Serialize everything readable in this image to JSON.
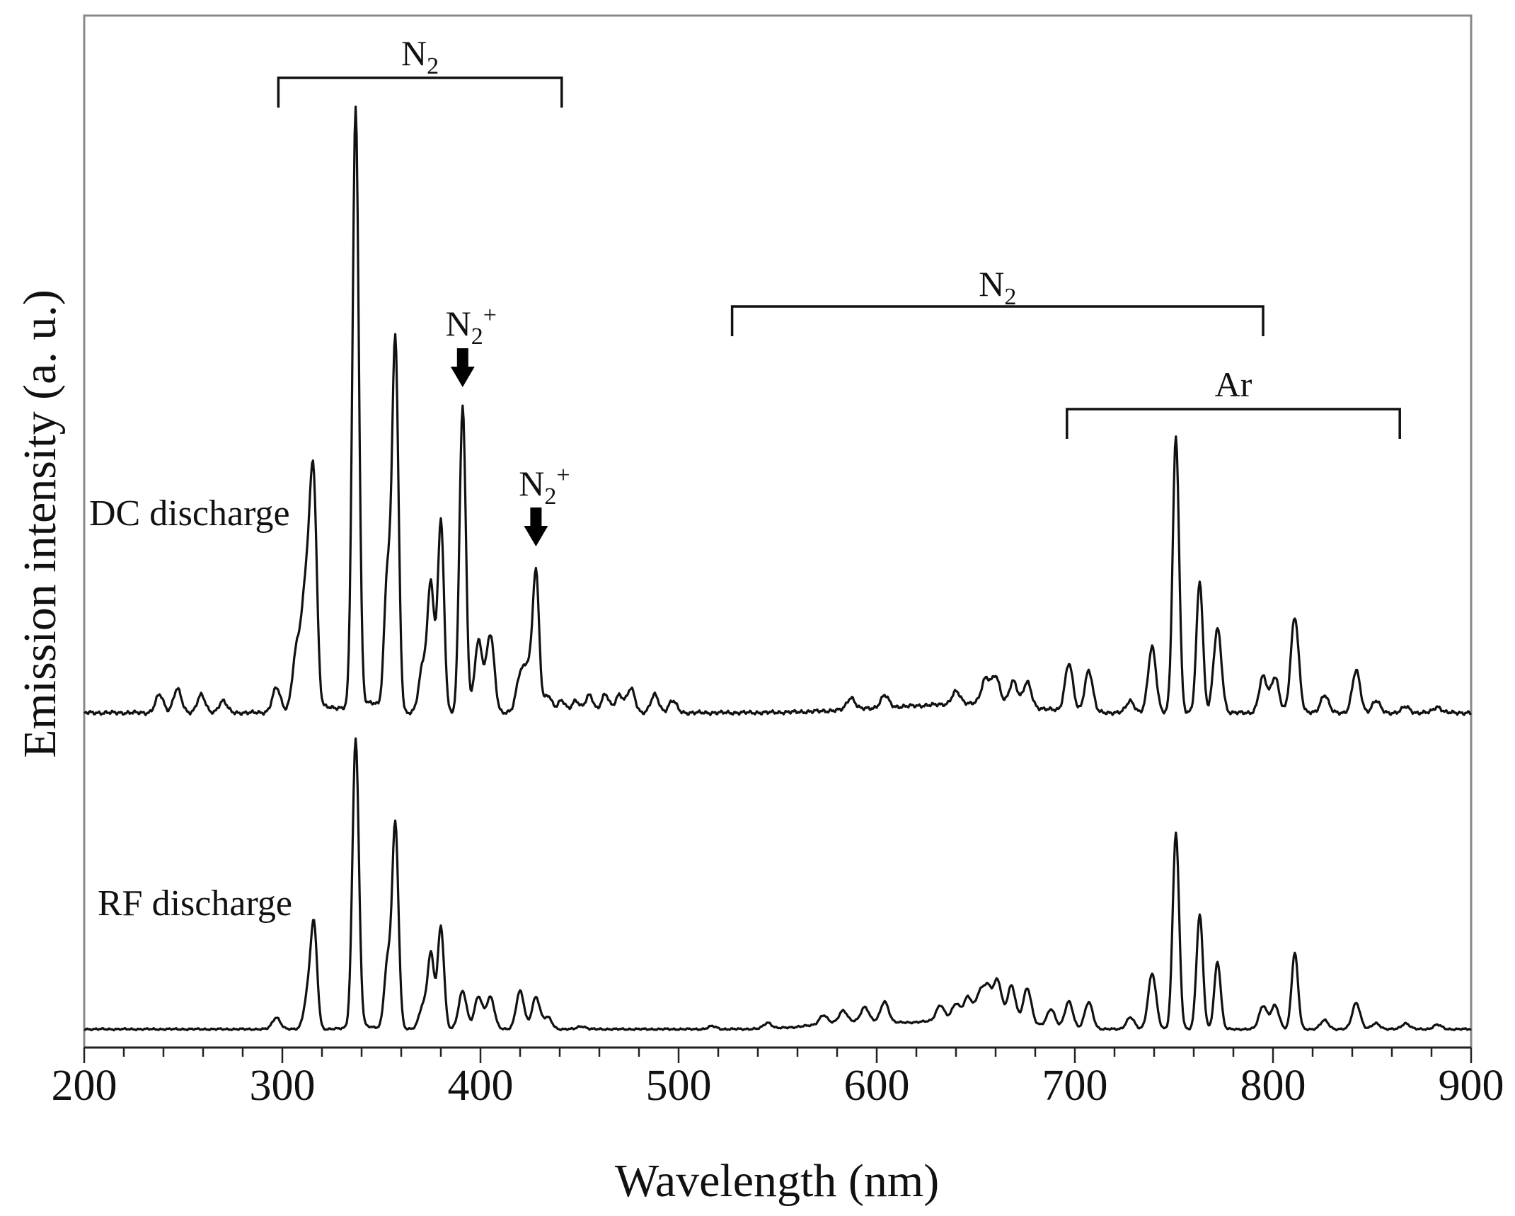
{
  "chart_data": {
    "type": "line",
    "title": "",
    "xlabel": "Wavelength (nm)",
    "ylabel": "Emission intensity (a. u.)",
    "xlim": [
      200,
      900
    ],
    "x_ticks": [
      "200",
      "300",
      "400",
      "500",
      "600",
      "700",
      "800",
      "900"
    ],
    "y_ticks": [],
    "grid": false,
    "legend": "none",
    "series": [
      {
        "name": "DC discharge",
        "baseline": 0,
        "line_color": "#111111",
        "peaks": [
          [
            238,
            0.03
          ],
          [
            247,
            0.04
          ],
          [
            259,
            0.03
          ],
          [
            270,
            0.02
          ],
          [
            297,
            0.04
          ],
          [
            307,
            0.09
          ],
          [
            311,
            0.13
          ],
          [
            314,
            0.19
          ],
          [
            316,
            0.27
          ],
          [
            337,
            1.0
          ],
          [
            353,
            0.22
          ],
          [
            357,
            0.62
          ],
          [
            371,
            0.08
          ],
          [
            375,
            0.21
          ],
          [
            380,
            0.32
          ],
          [
            391,
            0.51
          ],
          [
            399,
            0.12
          ],
          [
            405,
            0.13
          ],
          [
            420,
            0.06
          ],
          [
            424,
            0.07
          ],
          [
            428,
            0.23
          ],
          [
            434,
            0.03
          ],
          [
            441,
            0.02
          ],
          [
            448,
            0.02
          ],
          [
            455,
            0.03
          ],
          [
            463,
            0.03
          ],
          [
            470,
            0.03
          ],
          [
            476,
            0.04
          ],
          [
            488,
            0.03
          ],
          [
            497,
            0.02
          ],
          [
            587,
            0.02
          ],
          [
            604,
            0.02
          ],
          [
            640,
            0.02
          ],
          [
            655,
            0.04
          ],
          [
            660,
            0.045
          ],
          [
            669,
            0.04
          ],
          [
            676,
            0.04
          ],
          [
            697,
            0.08
          ],
          [
            707,
            0.07
          ],
          [
            728,
            0.02
          ],
          [
            739,
            0.11
          ],
          [
            751,
            0.46
          ],
          [
            763,
            0.22
          ],
          [
            772,
            0.14
          ],
          [
            795,
            0.06
          ],
          [
            801,
            0.06
          ],
          [
            811,
            0.16
          ],
          [
            826,
            0.03
          ],
          [
            842,
            0.07
          ],
          [
            852,
            0.02
          ],
          [
            867,
            0.01
          ],
          [
            883,
            0.01
          ]
        ]
      },
      {
        "name": "RF discharge",
        "baseline": 0,
        "line_color": "#111111",
        "peaks": [
          [
            297,
            0.04
          ],
          [
            313,
            0.12
          ],
          [
            316,
            0.33
          ],
          [
            337,
            0.98
          ],
          [
            353,
            0.22
          ],
          [
            357,
            0.7
          ],
          [
            371,
            0.08
          ],
          [
            375,
            0.25
          ],
          [
            380,
            0.35
          ],
          [
            391,
            0.13
          ],
          [
            399,
            0.11
          ],
          [
            405,
            0.11
          ],
          [
            420,
            0.13
          ],
          [
            428,
            0.11
          ],
          [
            434,
            0.04
          ],
          [
            451,
            0.01
          ],
          [
            517,
            0.01
          ],
          [
            545,
            0.02
          ],
          [
            573,
            0.03
          ],
          [
            583,
            0.04
          ],
          [
            594,
            0.05
          ],
          [
            604,
            0.07
          ],
          [
            632,
            0.05
          ],
          [
            640,
            0.05
          ],
          [
            646,
            0.07
          ],
          [
            652,
            0.08
          ],
          [
            656,
            0.1
          ],
          [
            661,
            0.13
          ],
          [
            668,
            0.12
          ],
          [
            676,
            0.12
          ],
          [
            688,
            0.06
          ],
          [
            697,
            0.09
          ],
          [
            707,
            0.09
          ],
          [
            728,
            0.04
          ],
          [
            739,
            0.19
          ],
          [
            751,
            0.67
          ],
          [
            763,
            0.39
          ],
          [
            772,
            0.23
          ],
          [
            795,
            0.08
          ],
          [
            801,
            0.08
          ],
          [
            811,
            0.26
          ],
          [
            826,
            0.03
          ],
          [
            842,
            0.09
          ],
          [
            852,
            0.02
          ],
          [
            867,
            0.02
          ],
          [
            883,
            0.015
          ]
        ]
      }
    ],
    "annotations": [
      {
        "id": "n2_uv",
        "type": "bracket",
        "x_range": [
          298,
          441
        ],
        "text": "N",
        "sub": "2",
        "sup": ""
      },
      {
        "id": "n2_ir",
        "type": "bracket",
        "x_range": [
          527,
          795
        ],
        "text": "N",
        "sub": "2",
        "sup": ""
      },
      {
        "id": "ar",
        "type": "bracket",
        "x_range": [
          696,
          864
        ],
        "text": "Ar",
        "sub": "",
        "sup": ""
      },
      {
        "id": "n2p_391",
        "type": "arrow",
        "x": 391,
        "text": "N",
        "sub": "2",
        "sup": "+"
      },
      {
        "id": "n2p_428",
        "type": "arrow",
        "x": 428,
        "text": "N",
        "sub": "2",
        "sup": "+"
      }
    ]
  }
}
